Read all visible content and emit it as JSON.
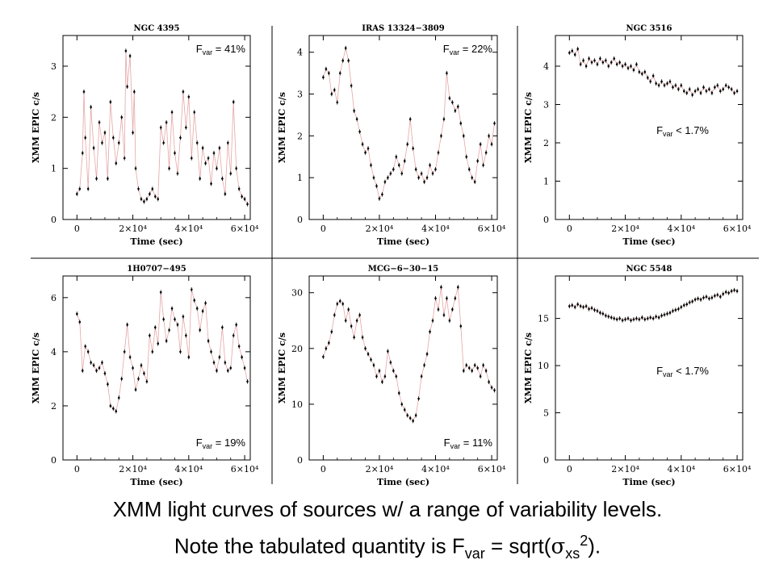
{
  "caption": {
    "line1": "XMM light curves of sources w/ a range of variability levels.",
    "line2_prefix": "Note the tabulated quantity is F",
    "line2_sub": "var",
    "line2_mid": " = sqrt(",
    "line2_sigma": "σ",
    "line2_sigma_sub": "xs",
    "line2_sup": "2",
    "line2_suffix": ")."
  },
  "chart_data": [
    {
      "type": "scatter",
      "title": "NGC 4395",
      "xlabel": "Time (sec)",
      "ylabel": "XMM EPIC c/s",
      "xlim": [
        -5000,
        62000
      ],
      "ylim": [
        0,
        3.6
      ],
      "xticks": [
        0,
        20000,
        40000,
        60000
      ],
      "xticklabels": [
        "0",
        "2×10⁴",
        "4×10⁴",
        "6×10⁴"
      ],
      "yticks": [
        0,
        1,
        2,
        3
      ],
      "fvar_label": "F_var = 41%",
      "annotation_position": "top-right",
      "series": [
        {
          "x": [
            0,
            1000,
            2000,
            2500,
            3000,
            4000,
            5000,
            6000,
            7000,
            8000,
            9000,
            10000,
            11000,
            12000,
            13000,
            14000,
            15000,
            16000,
            17000,
            17500,
            18000,
            19000,
            20000,
            20500,
            21000,
            22000,
            23000,
            24000,
            25000,
            26000,
            27000,
            28000,
            29000,
            30000,
            31000,
            32000,
            33000,
            34000,
            35000,
            36000,
            37000,
            38000,
            39000,
            40000,
            41000,
            42000,
            43000,
            44000,
            45000,
            46000,
            47000,
            48000,
            49000,
            50000,
            51000,
            52000,
            53000,
            54000,
            55000,
            56000,
            57000,
            58000,
            59000,
            60000,
            61000
          ],
          "y": [
            0.5,
            0.6,
            1.3,
            2.5,
            1.6,
            0.6,
            2.2,
            1.4,
            0.8,
            1.9,
            1.5,
            1.7,
            0.8,
            2.3,
            1.6,
            1.1,
            1.5,
            2.0,
            1.2,
            3.3,
            2.6,
            3.2,
            1.7,
            2.5,
            1.0,
            0.6,
            0.4,
            0.35,
            0.4,
            0.5,
            0.6,
            0.45,
            0.4,
            1.8,
            1.5,
            1.9,
            1.0,
            2.1,
            1.3,
            0.9,
            1.6,
            2.5,
            1.8,
            2.4,
            1.2,
            2.1,
            1.5,
            0.8,
            1.4,
            1.1,
            1.2,
            0.7,
            1.3,
            1.0,
            1.4,
            0.8,
            0.5,
            1.5,
            0.9,
            2.3,
            1.0,
            0.6,
            0.45,
            0.4,
            0.3
          ]
        }
      ]
    },
    {
      "type": "scatter",
      "title": "IRAS 13324−3809",
      "xlabel": "Time (sec)",
      "ylabel": "XMM EPIC c/s",
      "xlim": [
        -5000,
        62000
      ],
      "ylim": [
        0,
        4.4
      ],
      "xticks": [
        0,
        20000,
        40000,
        60000
      ],
      "xticklabels": [
        "0",
        "2×10⁴",
        "4×10⁴",
        "6×10⁴"
      ],
      "yticks": [
        0,
        1,
        2,
        3,
        4
      ],
      "fvar_label": "F_var = 22%",
      "annotation_position": "top-right",
      "series": [
        {
          "x": [
            0,
            1000,
            2000,
            3000,
            4000,
            5000,
            6000,
            7000,
            8000,
            9000,
            10000,
            11000,
            12000,
            13000,
            14000,
            15000,
            16000,
            17000,
            18000,
            19000,
            20000,
            21000,
            22000,
            23000,
            24000,
            25000,
            26000,
            27000,
            28000,
            29000,
            30000,
            31000,
            32000,
            33000,
            34000,
            35000,
            36000,
            37000,
            38000,
            39000,
            40000,
            41000,
            42000,
            43000,
            44000,
            45000,
            46000,
            47000,
            48000,
            49000,
            50000,
            51000,
            52000,
            53000,
            54000,
            55000,
            56000,
            57000,
            58000,
            59000,
            60000,
            61000
          ],
          "y": [
            3.4,
            3.6,
            3.5,
            3.0,
            3.1,
            2.8,
            3.5,
            3.8,
            4.1,
            3.8,
            3.2,
            2.6,
            2.4,
            2.1,
            1.8,
            1.6,
            1.7,
            1.3,
            1.0,
            0.8,
            0.5,
            0.6,
            0.9,
            1.0,
            1.1,
            1.2,
            1.5,
            1.3,
            1.1,
            1.4,
            1.8,
            2.4,
            1.7,
            1.2,
            1.0,
            1.1,
            0.9,
            1.0,
            1.3,
            1.1,
            1.2,
            1.6,
            2.0,
            2.4,
            3.5,
            2.9,
            2.8,
            2.6,
            2.7,
            2.3,
            2.0,
            1.5,
            1.2,
            1.0,
            0.9,
            1.4,
            1.8,
            1.3,
            1.6,
            2.0,
            1.8,
            2.3
          ]
        }
      ]
    },
    {
      "type": "scatter",
      "title": "NGC 3516",
      "xlabel": "Time (sec)",
      "ylabel": "XMM EPIC c/s",
      "xlim": [
        -5000,
        62000
      ],
      "ylim": [
        0,
        4.8
      ],
      "xticks": [
        0,
        20000,
        40000,
        60000
      ],
      "xticklabels": [
        "0",
        "2×10⁴",
        "4×10⁴",
        "6×10⁴"
      ],
      "yticks": [
        0,
        1,
        2,
        3,
        4
      ],
      "fvar_label": "F_var < 1.7%",
      "annotation_position": "middle-right",
      "series": [
        {
          "x": [
            0,
            1000,
            2000,
            3000,
            4000,
            5000,
            6000,
            7000,
            8000,
            9000,
            10000,
            11000,
            12000,
            13000,
            14000,
            15000,
            16000,
            17000,
            18000,
            19000,
            20000,
            21000,
            22000,
            23000,
            24000,
            25000,
            26000,
            27000,
            28000,
            29000,
            30000,
            31000,
            32000,
            33000,
            34000,
            35000,
            36000,
            37000,
            38000,
            39000,
            40000,
            41000,
            42000,
            43000,
            44000,
            45000,
            46000,
            47000,
            48000,
            49000,
            50000,
            51000,
            52000,
            53000,
            54000,
            55000,
            56000,
            57000,
            58000,
            59000,
            60000
          ],
          "y": [
            4.35,
            4.4,
            4.3,
            4.45,
            4.05,
            4.15,
            4.0,
            4.2,
            4.1,
            4.15,
            4.05,
            4.2,
            4.1,
            4.15,
            4.0,
            4.1,
            4.2,
            4.05,
            4.1,
            4.0,
            4.05,
            3.95,
            4.0,
            3.9,
            4.05,
            3.85,
            3.8,
            3.85,
            3.7,
            3.6,
            3.75,
            3.55,
            3.5,
            3.6,
            3.5,
            3.55,
            3.6,
            3.45,
            3.5,
            3.4,
            3.5,
            3.35,
            3.3,
            3.4,
            3.25,
            3.35,
            3.4,
            3.3,
            3.45,
            3.35,
            3.4,
            3.3,
            3.45,
            3.5,
            3.35,
            3.4,
            3.5,
            3.45,
            3.4,
            3.3,
            3.35
          ]
        }
      ]
    },
    {
      "type": "scatter",
      "title": "1H0707−495",
      "xlabel": "Time (sec)",
      "ylabel": "XMM EPIC c/s",
      "xlim": [
        -5000,
        62000
      ],
      "ylim": [
        0,
        6.8
      ],
      "xticks": [
        0,
        20000,
        40000,
        60000
      ],
      "xticklabels": [
        "0",
        "2×10⁴",
        "4×10⁴",
        "6×10⁴"
      ],
      "yticks": [
        0,
        2,
        4,
        6
      ],
      "fvar_label": "F_var = 19%",
      "annotation_position": "bottom-right",
      "series": [
        {
          "x": [
            0,
            1000,
            2000,
            3000,
            4000,
            5000,
            6000,
            7000,
            8000,
            9000,
            10000,
            11000,
            12000,
            13000,
            14000,
            15000,
            16000,
            17000,
            18000,
            19000,
            20000,
            21000,
            22000,
            23000,
            24000,
            25000,
            26000,
            27000,
            28000,
            29000,
            30000,
            31000,
            32000,
            33000,
            34000,
            35000,
            36000,
            37000,
            38000,
            39000,
            40000,
            41000,
            42000,
            43000,
            44000,
            45000,
            46000,
            47000,
            48000,
            49000,
            50000,
            51000,
            52000,
            53000,
            54000,
            55000,
            56000,
            57000,
            58000,
            59000,
            60000,
            61000
          ],
          "y": [
            5.4,
            5.1,
            3.3,
            4.2,
            4.0,
            3.6,
            3.5,
            3.3,
            3.4,
            3.6,
            3.2,
            2.8,
            2.0,
            1.9,
            1.8,
            2.3,
            3.0,
            4.0,
            5.0,
            3.8,
            3.4,
            2.6,
            3.0,
            3.5,
            3.2,
            2.9,
            4.6,
            4.0,
            4.9,
            4.3,
            6.2,
            5.2,
            4.4,
            4.8,
            5.6,
            5.2,
            5.0,
            4.0,
            5.3,
            4.6,
            3.8,
            6.3,
            5.9,
            5.6,
            4.8,
            5.5,
            5.8,
            4.4,
            4.0,
            3.6,
            3.3,
            3.8,
            4.9,
            3.6,
            3.3,
            3.4,
            4.6,
            5.0,
            4.2,
            3.8,
            3.4,
            2.9
          ]
        }
      ]
    },
    {
      "type": "scatter",
      "title": "MCG−6−30−15",
      "xlabel": "Time (sec)",
      "ylabel": "XMM EPIC c/s",
      "xlim": [
        -5000,
        62000
      ],
      "ylim": [
        0,
        33
      ],
      "xticks": [
        0,
        20000,
        40000,
        60000
      ],
      "xticklabels": [
        "0",
        "2×10⁴",
        "4×10⁴",
        "6×10⁴"
      ],
      "yticks": [
        0,
        10,
        20,
        30
      ],
      "fvar_label": "F_var = 11%",
      "annotation_position": "bottom-right",
      "series": [
        {
          "x": [
            0,
            1000,
            2000,
            3000,
            4000,
            5000,
            6000,
            7000,
            8000,
            9000,
            10000,
            11000,
            12000,
            13000,
            14000,
            15000,
            16000,
            17000,
            18000,
            19000,
            20000,
            21000,
            22000,
            23000,
            24000,
            25000,
            26000,
            27000,
            28000,
            29000,
            30000,
            31000,
            32000,
            33000,
            34000,
            35000,
            36000,
            37000,
            38000,
            39000,
            40000,
            41000,
            42000,
            43000,
            44000,
            45000,
            46000,
            47000,
            48000,
            49000,
            50000,
            51000,
            52000,
            53000,
            54000,
            55000,
            56000,
            57000,
            58000,
            59000,
            60000,
            61000
          ],
          "y": [
            18.5,
            20,
            21,
            23,
            26,
            28,
            28.5,
            28,
            25,
            27,
            24,
            22,
            25,
            26,
            22,
            20,
            19,
            18,
            17,
            15,
            16,
            14,
            15,
            19.5,
            17.5,
            16,
            15,
            12,
            10,
            9,
            8,
            7.5,
            7,
            8,
            11,
            15,
            17,
            19,
            23,
            25,
            29,
            27,
            31,
            26,
            29,
            25,
            27,
            29,
            31,
            24,
            16,
            17,
            16.5,
            16,
            17,
            16.5,
            15,
            17,
            16,
            14,
            13,
            12.5
          ]
        }
      ]
    },
    {
      "type": "scatter",
      "title": "NGC 5548",
      "xlabel": "Time (sec)",
      "ylabel": "XMM EPIC c/s",
      "xlim": [
        -5000,
        62000
      ],
      "ylim": [
        0,
        19.5
      ],
      "xticks": [
        0,
        20000,
        40000,
        60000
      ],
      "xticklabels": [
        "0",
        "2×10⁴",
        "4×10⁴",
        "6×10⁴"
      ],
      "yticks": [
        0,
        5,
        10,
        15
      ],
      "fvar_label": "F_var < 1.7%",
      "annotation_position": "middle-right",
      "series": [
        {
          "x": [
            0,
            1000,
            2000,
            3000,
            4000,
            5000,
            6000,
            7000,
            8000,
            9000,
            10000,
            11000,
            12000,
            13000,
            14000,
            15000,
            16000,
            17000,
            18000,
            19000,
            20000,
            21000,
            22000,
            23000,
            24000,
            25000,
            26000,
            27000,
            28000,
            29000,
            30000,
            31000,
            32000,
            33000,
            34000,
            35000,
            36000,
            37000,
            38000,
            39000,
            40000,
            41000,
            42000,
            43000,
            44000,
            45000,
            46000,
            47000,
            48000,
            49000,
            50000,
            51000,
            52000,
            53000,
            54000,
            55000,
            56000,
            57000,
            58000,
            59000,
            60000
          ],
          "y": [
            16.3,
            16.4,
            16.2,
            16.5,
            16.3,
            16.2,
            16.3,
            16.0,
            16.1,
            15.9,
            15.8,
            15.6,
            15.5,
            15.3,
            15.2,
            15.1,
            15.0,
            14.9,
            15.0,
            14.8,
            14.9,
            15.0,
            14.8,
            14.9,
            15.0,
            14.9,
            15.1,
            14.9,
            15.0,
            15.1,
            15.0,
            15.2,
            15.1,
            15.3,
            15.4,
            15.5,
            15.6,
            15.8,
            15.9,
            16.0,
            16.2,
            16.4,
            16.5,
            16.7,
            16.8,
            17.0,
            17.1,
            17.0,
            17.2,
            17.3,
            17.1,
            17.2,
            17.4,
            17.5,
            17.3,
            17.6,
            17.8,
            17.7,
            17.9,
            18.0,
            17.9
          ]
        }
      ]
    }
  ]
}
